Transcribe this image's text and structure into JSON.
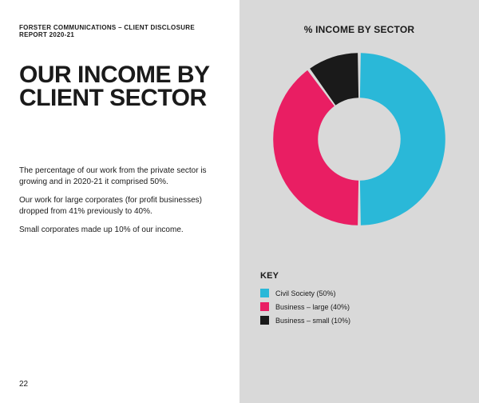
{
  "breadcrumb": "FORSTER COMMUNICATIONS – CLIENT DISCLOSURE REPORT 2020-21",
  "title": "OUR INCOME BY CLIENT SECTOR",
  "paragraphs": [
    "The percentage of our work from the private sector is growing and in 2020-21 it comprised 50%.",
    "Our work for large corporates (for profit businesses) dropped from 41% previously to 40%.",
    "Small corporates made up 10% of our income."
  ],
  "page_number": "22",
  "chart": {
    "type": "donut",
    "title": "% INCOME BY SECTOR",
    "background_color": "#d9d9d9",
    "inner_radius_ratio": 0.48,
    "gap_degrees": 2,
    "start_angle_deg": -90,
    "slices": [
      {
        "label": "Civil Society (50%)",
        "value": 50,
        "color": "#2ab8d8"
      },
      {
        "label": "Business – large (40%)",
        "value": 40,
        "color": "#e91e63"
      },
      {
        "label": "Business – small (10%)",
        "value": 10,
        "color": "#1a1a1a"
      }
    ],
    "legend_title": "KEY",
    "title_fontsize": 12,
    "legend_fontsize": 9
  }
}
